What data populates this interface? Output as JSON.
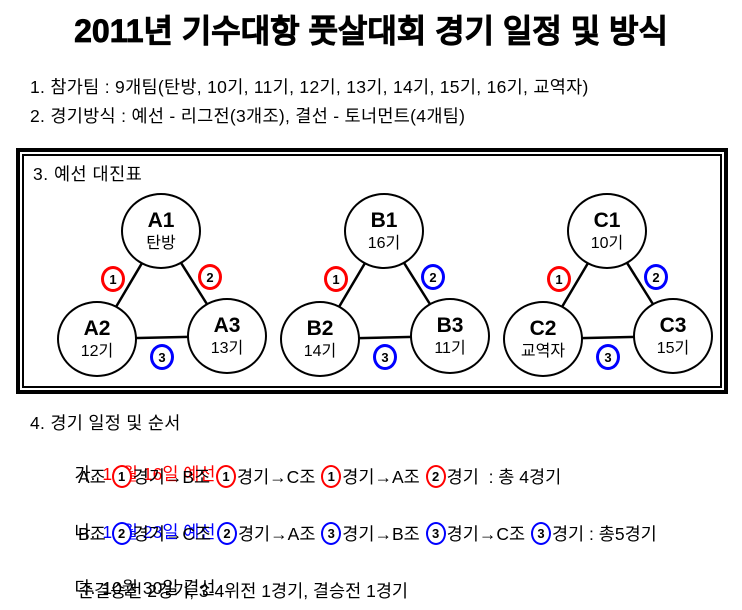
{
  "title": "2011년 기수대항 풋살대회 경기 일정 및 방식",
  "intro": {
    "line1": "1. 참가팀 : 9개팀(탄방, 10기, 11기, 12기, 13기, 14기, 15기, 16기, 교역자)",
    "line2": "2. 경기방식 : 예선 - 리그전(3개조), 결선 - 토너먼트(4개팀)"
  },
  "bracket": {
    "heading": "3. 예선 대진표",
    "groups": [
      {
        "id": "A",
        "top": {
          "label": "A1",
          "team": "탄방"
        },
        "left": {
          "label": "A2",
          "team": "12기"
        },
        "right": {
          "label": "A3",
          "team": "13기"
        },
        "matches": [
          {
            "num": "1",
            "color": "#ff0000"
          },
          {
            "num": "2",
            "color": "#ff0000"
          },
          {
            "num": "3",
            "color": "#0000ff"
          }
        ]
      },
      {
        "id": "B",
        "top": {
          "label": "B1",
          "team": "16기"
        },
        "left": {
          "label": "B2",
          "team": "14기"
        },
        "right": {
          "label": "B3",
          "team": "11기"
        },
        "matches": [
          {
            "num": "1",
            "color": "#ff0000"
          },
          {
            "num": "2",
            "color": "#0000ff"
          },
          {
            "num": "3",
            "color": "#0000ff"
          }
        ]
      },
      {
        "id": "C",
        "top": {
          "label": "C1",
          "team": "10기"
        },
        "left": {
          "label": "C2",
          "team": "교역자"
        },
        "right": {
          "label": "C3",
          "team": "15기"
        },
        "matches": [
          {
            "num": "1",
            "color": "#ff0000"
          },
          {
            "num": "2",
            "color": "#0000ff"
          },
          {
            "num": "3",
            "color": "#0000ff"
          }
        ]
      }
    ]
  },
  "schedule": {
    "heading": "4. 경기 일정 및 순서",
    "entries": [
      {
        "label": "가.",
        "date": "10월 16일 예선",
        "date_color": "#ff0000",
        "tokens": [
          {
            "text": "A조 "
          },
          {
            "circle": "1",
            "color": "#ff0000"
          },
          {
            "text": "경기→B조 "
          },
          {
            "circle": "1",
            "color": "#ff0000"
          },
          {
            "text": "경기→C조 "
          },
          {
            "circle": "1",
            "color": "#ff0000"
          },
          {
            "text": "경기→A조 "
          },
          {
            "circle": "2",
            "color": "#ff0000"
          },
          {
            "text": "경기  : 총 4경기"
          }
        ]
      },
      {
        "label": "나.",
        "date": "10월 23일 예선",
        "date_color": "#0000ff",
        "tokens": [
          {
            "text": "B조 "
          },
          {
            "circle": "2",
            "color": "#0000ff"
          },
          {
            "text": "경기→C조 "
          },
          {
            "circle": "2",
            "color": "#0000ff"
          },
          {
            "text": "경기→A조 "
          },
          {
            "circle": "3",
            "color": "#0000ff"
          },
          {
            "text": "경기→B조 "
          },
          {
            "circle": "3",
            "color": "#0000ff"
          },
          {
            "text": "경기→C조 "
          },
          {
            "circle": "3",
            "color": "#0000ff"
          },
          {
            "text": "경기 : 총5경기"
          }
        ]
      },
      {
        "label": "다.",
        "date": "10월 30일 결선",
        "date_color": "#000000",
        "tokens": [
          {
            "text": "준결승전 2경기, 3-4위전 1경기, 결승전 1경기"
          }
        ]
      }
    ]
  },
  "colors": {
    "line": "#000000",
    "red": "#ff0000",
    "blue": "#0000ff"
  }
}
